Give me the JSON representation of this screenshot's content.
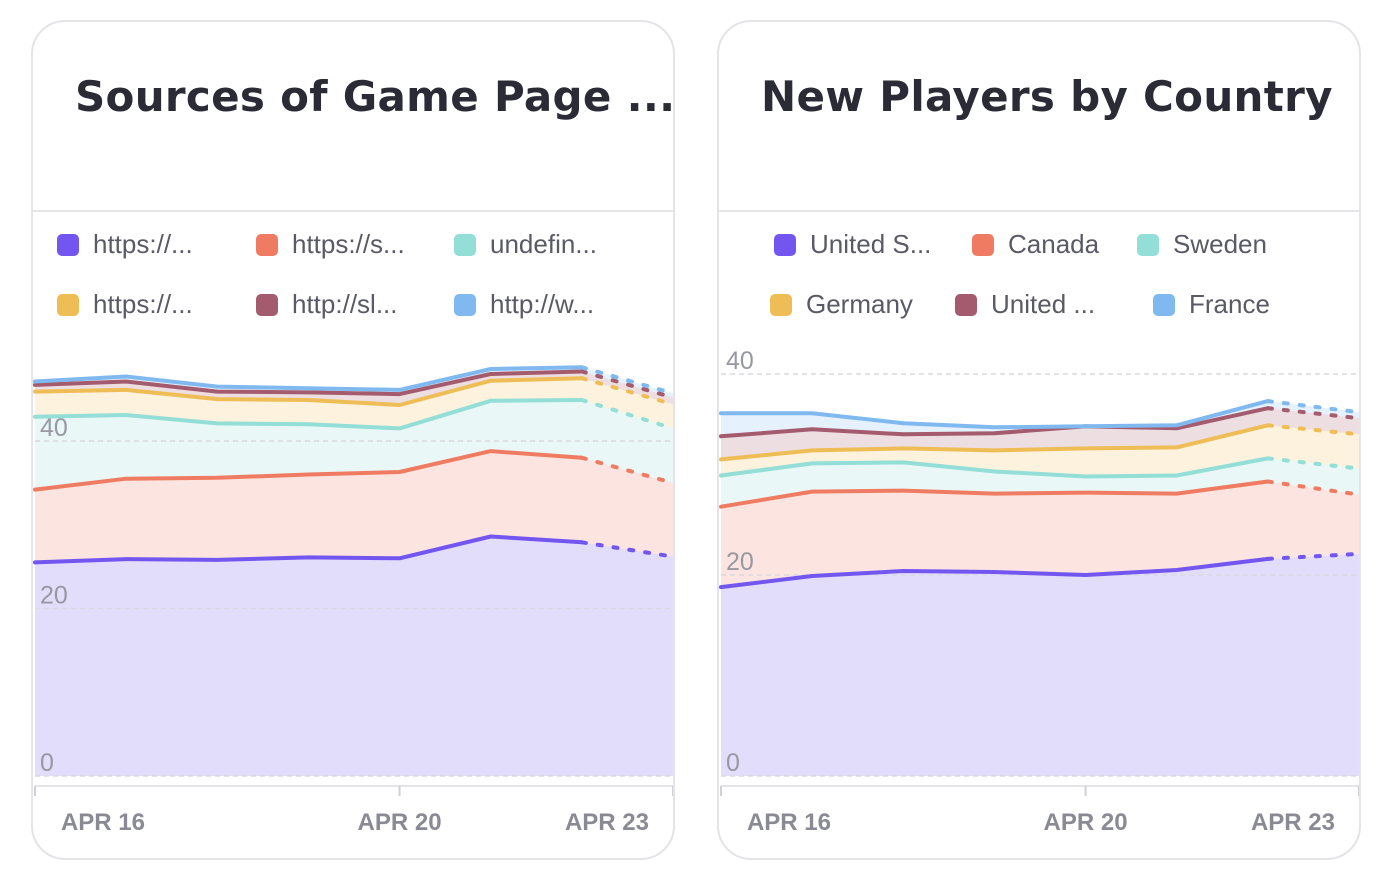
{
  "charts": [
    {
      "title": "Sources of Game Page ...",
      "legend": [
        {
          "label": "https://...",
          "color": "#7356f0"
        },
        {
          "label": "https://s...",
          "color": "#ef7c62"
        },
        {
          "label": "undefin...",
          "color": "#93ded6"
        },
        {
          "label": "https://...",
          "color": "#efbd55"
        },
        {
          "label": "http://sl...",
          "color": "#a35b6d"
        },
        {
          "label": "http://w...",
          "color": "#7fb9ef"
        }
      ],
      "x_tick_labels": [
        "APR 16",
        "APR 20",
        "APR 23"
      ],
      "y_tick_labels": [
        "0",
        "20",
        "40"
      ]
    },
    {
      "title": "New Players by Country",
      "legend": [
        {
          "label": "United S...",
          "color": "#7356f0"
        },
        {
          "label": "Canada",
          "color": "#ef7c62"
        },
        {
          "label": "Sweden",
          "color": "#93ded6"
        },
        {
          "label": "Germany",
          "color": "#efbd55"
        },
        {
          "label": "United ...",
          "color": "#a35b6d"
        },
        {
          "label": "France",
          "color": "#7fb9ef"
        }
      ],
      "x_tick_labels": [
        "APR 16",
        "APR 20",
        "APR 23"
      ],
      "y_tick_labels": [
        "0",
        "20",
        "40"
      ]
    }
  ],
  "chart_data": [
    {
      "type": "area",
      "title": "Sources of Game Page ...",
      "stacked": true,
      "x": [
        "Apr 16",
        "Apr 17",
        "Apr 18",
        "Apr 19",
        "Apr 20",
        "Apr 21",
        "Apr 22",
        "Apr 23"
      ],
      "x_ticks": [
        "APR 16",
        "APR 20",
        "APR 23"
      ],
      "ylim": [
        0,
        47
      ],
      "y_ticks": [
        0,
        20,
        40
      ],
      "grid": true,
      "incomplete_last_period": true,
      "series": [
        {
          "name": "https://...",
          "color": "#7356f0",
          "values": [
            25.5,
            25.9,
            25.8,
            26.1,
            26.0,
            28.6,
            27.9,
            26.2
          ]
        },
        {
          "name": "https://s...",
          "color": "#ef7c62",
          "values": [
            8.7,
            9.6,
            9.8,
            9.9,
            10.3,
            10.2,
            10.1,
            8.8
          ]
        },
        {
          "name": "undefin...",
          "color": "#93ded6",
          "values": [
            8.7,
            7.6,
            6.5,
            6.0,
            5.2,
            6.0,
            6.9,
            6.5
          ]
        },
        {
          "name": "https://...",
          "color": "#efbd55",
          "values": [
            3.0,
            3.0,
            2.9,
            2.9,
            2.8,
            2.4,
            2.6,
            2.9
          ]
        },
        {
          "name": "http://sl...",
          "color": "#a35b6d",
          "values": [
            0.8,
            1.0,
            0.9,
            0.9,
            1.3,
            0.8,
            0.8,
            0.8
          ]
        },
        {
          "name": "http://w...",
          "color": "#7fb9ef",
          "values": [
            0.4,
            0.6,
            0.6,
            0.5,
            0.5,
            0.6,
            0.5,
            0.5
          ]
        }
      ]
    },
    {
      "type": "area",
      "title": "New Players by Country",
      "stacked": true,
      "x": [
        "Apr 16",
        "Apr 17",
        "Apr 18",
        "Apr 19",
        "Apr 20",
        "Apr 21",
        "Apr 22",
        "Apr 23"
      ],
      "x_ticks": [
        "APR 16",
        "APR 20",
        "APR 23"
      ],
      "ylim": [
        0,
        40
      ],
      "y_ticks": [
        0,
        20,
        40
      ],
      "grid": true,
      "incomplete_last_period": true,
      "series": [
        {
          "name": "United S...",
          "color": "#7356f0",
          "values": [
            18.8,
            19.9,
            20.4,
            20.3,
            20.0,
            20.5,
            21.6,
            22.1
          ]
        },
        {
          "name": "Canada",
          "color": "#ef7c62",
          "values": [
            8.0,
            8.4,
            8.0,
            7.8,
            8.2,
            7.6,
            7.7,
            5.9
          ]
        },
        {
          "name": "Sweden",
          "color": "#93ded6",
          "values": [
            3.1,
            2.8,
            2.8,
            2.2,
            1.6,
            1.8,
            2.3,
            2.6
          ]
        },
        {
          "name": "Germany",
          "color": "#efbd55",
          "values": [
            1.6,
            1.3,
            1.4,
            2.1,
            2.8,
            2.8,
            3.3,
            3.4
          ]
        },
        {
          "name": "United ...",
          "color": "#a35b6d",
          "values": [
            2.3,
            2.1,
            1.4,
            1.7,
            2.2,
            1.9,
            1.7,
            1.6
          ]
        },
        {
          "name": "France",
          "color": "#7fb9ef",
          "values": [
            2.3,
            1.6,
            1.1,
            0.6,
            0.0,
            0.3,
            0.7,
            0.6
          ]
        }
      ]
    }
  ]
}
